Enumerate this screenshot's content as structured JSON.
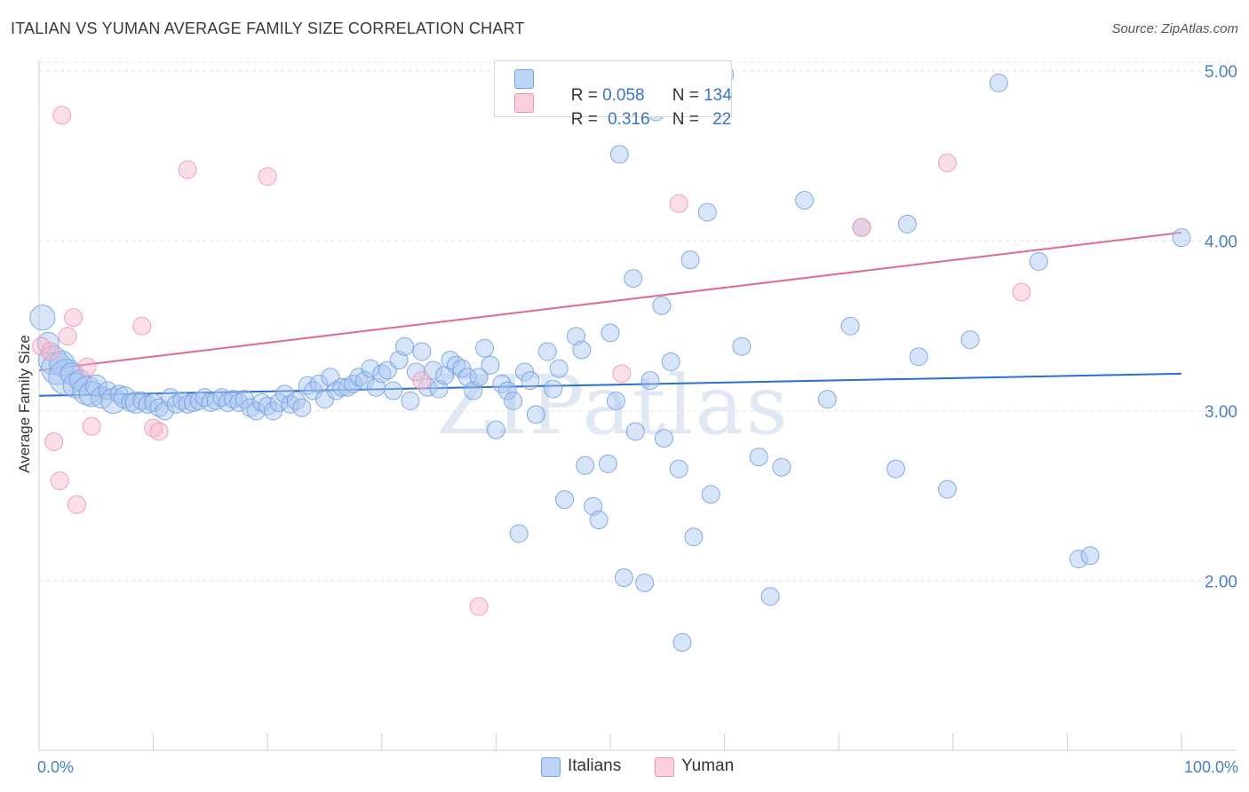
{
  "title": "ITALIAN VS YUMAN AVERAGE FAMILY SIZE CORRELATION CHART",
  "source": "Source: ZipAtlas.com",
  "watermark": "ZIPatlas",
  "legend_top": {
    "rows": [
      {
        "r_label": "R = ",
        "r_value": "0.058",
        "n_label": "N = ",
        "n_value": "134",
        "color": "#a8c6f0"
      },
      {
        "r_label": "R = ",
        "r_value": "0.316",
        "n_label": "N = ",
        "n_value": "22",
        "color": "#f6b8cb"
      }
    ]
  },
  "legend_bottom": [
    {
      "label": "Italians",
      "color": "#a8c6f0"
    },
    {
      "label": "Yuman",
      "color": "#f6b8cb"
    }
  ],
  "chart_data": {
    "type": "scatter",
    "title": "ITALIAN VS YUMAN AVERAGE FAMILY SIZE CORRELATION CHART",
    "xlabel": "",
    "ylabel": "Average Family Size",
    "xlim": [
      0,
      100
    ],
    "ylim": [
      1.0,
      5.3
    ],
    "x_tick_labels": [
      "0.0%",
      "100.0%"
    ],
    "y_ticks": [
      2.0,
      3.0,
      4.0,
      5.0
    ],
    "y_tick_labels": [
      "2.00",
      "3.00",
      "4.00",
      "5.00"
    ],
    "grid": true,
    "legend_position": "top-center",
    "series": [
      {
        "name": "Italians",
        "color": "#6e9fe0",
        "fill": "#a8c6f0",
        "trend": {
          "x": [
            0,
            100
          ],
          "y": [
            3.09,
            3.22
          ]
        },
        "points": [
          [
            0.3,
            3.55,
            14
          ],
          [
            0.8,
            3.4,
            12
          ],
          [
            1.2,
            3.3,
            16
          ],
          [
            1.6,
            3.25,
            18
          ],
          [
            2.0,
            3.28,
            14
          ],
          [
            2.4,
            3.2,
            20
          ],
          [
            2.8,
            3.22,
            12
          ],
          [
            3.2,
            3.15,
            14
          ],
          [
            3.6,
            3.18,
            12
          ],
          [
            4.2,
            3.12,
            16
          ],
          [
            4.6,
            3.1,
            14
          ],
          [
            5.0,
            3.15,
            12
          ],
          [
            5.5,
            3.08,
            12
          ],
          [
            6.0,
            3.12,
            10
          ],
          [
            6.5,
            3.06,
            14
          ],
          [
            7.0,
            3.1,
            10
          ],
          [
            7.5,
            3.08,
            12
          ],
          [
            8.0,
            3.05,
            10
          ],
          [
            8.5,
            3.05,
            12
          ],
          [
            9.0,
            3.06,
            10
          ],
          [
            9.5,
            3.04,
            10
          ],
          [
            10.0,
            3.05,
            10
          ],
          [
            10.5,
            3.02,
            10
          ],
          [
            11.0,
            3.0,
            10
          ],
          [
            11.5,
            3.08,
            10
          ],
          [
            12.0,
            3.04,
            10
          ],
          [
            12.5,
            3.06,
            10
          ],
          [
            13.0,
            3.04,
            10
          ],
          [
            13.5,
            3.05,
            10
          ],
          [
            14.0,
            3.06,
            10
          ],
          [
            14.5,
            3.08,
            10
          ],
          [
            15.0,
            3.05,
            10
          ],
          [
            15.5,
            3.06,
            10
          ],
          [
            16.0,
            3.08,
            10
          ],
          [
            16.5,
            3.05,
            10
          ],
          [
            17.0,
            3.07,
            10
          ],
          [
            17.5,
            3.05,
            10
          ],
          [
            18.0,
            3.07,
            10
          ],
          [
            18.5,
            3.02,
            10
          ],
          [
            19.0,
            3.0,
            10
          ],
          [
            19.5,
            3.05,
            10
          ],
          [
            20.0,
            3.03,
            10
          ],
          [
            20.5,
            3.0,
            10
          ],
          [
            21.0,
            3.05,
            10
          ],
          [
            21.5,
            3.1,
            10
          ],
          [
            22.0,
            3.04,
            10
          ],
          [
            22.5,
            3.06,
            10
          ],
          [
            23.0,
            3.02,
            10
          ],
          [
            23.5,
            3.15,
            10
          ],
          [
            24.0,
            3.12,
            10
          ],
          [
            24.5,
            3.16,
            10
          ],
          [
            25.0,
            3.07,
            10
          ],
          [
            25.5,
            3.2,
            10
          ],
          [
            26.0,
            3.12,
            10
          ],
          [
            26.5,
            3.14,
            10
          ],
          [
            27.0,
            3.14,
            10
          ],
          [
            27.5,
            3.16,
            10
          ],
          [
            28.0,
            3.2,
            10
          ],
          [
            28.5,
            3.18,
            10
          ],
          [
            29.0,
            3.25,
            10
          ],
          [
            29.5,
            3.14,
            10
          ],
          [
            30.0,
            3.22,
            10
          ],
          [
            30.5,
            3.24,
            10
          ],
          [
            31.0,
            3.12,
            10
          ],
          [
            31.5,
            3.3,
            10
          ],
          [
            32.0,
            3.38,
            10
          ],
          [
            32.5,
            3.06,
            10
          ],
          [
            33.0,
            3.23,
            10
          ],
          [
            33.5,
            3.35,
            10
          ],
          [
            34.0,
            3.14,
            10
          ],
          [
            34.5,
            3.24,
            10
          ],
          [
            35.0,
            3.13,
            10
          ],
          [
            35.5,
            3.21,
            10
          ],
          [
            36.0,
            3.3,
            10
          ],
          [
            36.5,
            3.27,
            10
          ],
          [
            37.0,
            3.25,
            10
          ],
          [
            37.5,
            3.2,
            10
          ],
          [
            38.0,
            3.12,
            10
          ],
          [
            38.5,
            3.2,
            10
          ],
          [
            39.0,
            3.37,
            10
          ],
          [
            39.5,
            3.27,
            10
          ],
          [
            40.0,
            2.89,
            10
          ],
          [
            40.5,
            3.16,
            10
          ],
          [
            41.0,
            3.12,
            10
          ],
          [
            41.5,
            3.06,
            10
          ],
          [
            42.0,
            2.28,
            10
          ],
          [
            42.5,
            3.23,
            10
          ],
          [
            43.0,
            3.18,
            10
          ],
          [
            43.5,
            2.98,
            10
          ],
          [
            44.5,
            3.35,
            10
          ],
          [
            45.0,
            3.13,
            10
          ],
          [
            45.5,
            3.25,
            10
          ],
          [
            46.0,
            2.48,
            10
          ],
          [
            47.0,
            3.44,
            10
          ],
          [
            47.5,
            3.36,
            10
          ],
          [
            47.8,
            2.68,
            10
          ],
          [
            48.5,
            2.44,
            10
          ],
          [
            49.0,
            2.36,
            10
          ],
          [
            49.8,
            2.69,
            10
          ],
          [
            50.0,
            3.46,
            10
          ],
          [
            50.5,
            3.06,
            10
          ],
          [
            50.8,
            4.51,
            10
          ],
          [
            51.2,
            2.02,
            10
          ],
          [
            52.0,
            3.78,
            10
          ],
          [
            52.2,
            2.88,
            10
          ],
          [
            53.0,
            1.99,
            10
          ],
          [
            53.5,
            3.18,
            10
          ],
          [
            54.0,
            4.76,
            10
          ],
          [
            54.5,
            3.62,
            10
          ],
          [
            54.7,
            2.84,
            10
          ],
          [
            55.3,
            3.29,
            10
          ],
          [
            56.0,
            2.66,
            10
          ],
          [
            56.3,
            1.64,
            10
          ],
          [
            57.0,
            3.89,
            10
          ],
          [
            57.3,
            2.26,
            10
          ],
          [
            58.5,
            4.17,
            10
          ],
          [
            58.8,
            2.51,
            10
          ],
          [
            60.0,
            4.98,
            10
          ],
          [
            61.5,
            3.38,
            10
          ],
          [
            63.0,
            2.73,
            10
          ],
          [
            64.0,
            1.91,
            10
          ],
          [
            65.0,
            2.67,
            10
          ],
          [
            67.0,
            4.24,
            10
          ],
          [
            69.0,
            3.07,
            10
          ],
          [
            71.0,
            3.5,
            10
          ],
          [
            72.0,
            4.08,
            10
          ],
          [
            75.0,
            2.66,
            10
          ],
          [
            76.0,
            4.1,
            10
          ],
          [
            77.0,
            3.32,
            10
          ],
          [
            79.5,
            2.54,
            10
          ],
          [
            81.5,
            3.42,
            10
          ],
          [
            84.0,
            4.93,
            10
          ],
          [
            87.5,
            3.88,
            10
          ],
          [
            91.0,
            2.13,
            10
          ],
          [
            92.0,
            2.15,
            10
          ],
          [
            100.0,
            4.02,
            10
          ]
        ]
      },
      {
        "name": "Yuman",
        "color": "#f090b0",
        "fill": "#f6b8cb",
        "trend": {
          "x": [
            0,
            100
          ],
          "y": [
            3.24,
            4.05
          ]
        },
        "points": [
          [
            0.2,
            3.38,
            10
          ],
          [
            1.0,
            3.35,
            10
          ],
          [
            1.3,
            2.82,
            10
          ],
          [
            1.8,
            2.59,
            10
          ],
          [
            2.0,
            4.74,
            10
          ],
          [
            2.5,
            3.44,
            10
          ],
          [
            3.0,
            3.55,
            10
          ],
          [
            3.3,
            2.45,
            10
          ],
          [
            4.2,
            3.26,
            10
          ],
          [
            4.6,
            2.91,
            10
          ],
          [
            9.0,
            3.5,
            10
          ],
          [
            10.0,
            2.9,
            10
          ],
          [
            10.5,
            2.88,
            10
          ],
          [
            13.0,
            4.42,
            10
          ],
          [
            20.0,
            4.38,
            10
          ],
          [
            33.5,
            3.18,
            10
          ],
          [
            38.5,
            1.85,
            10
          ],
          [
            51.0,
            3.22,
            10
          ],
          [
            56.0,
            4.22,
            10
          ],
          [
            72.0,
            4.08,
            10
          ],
          [
            79.5,
            4.46,
            10
          ],
          [
            86.0,
            3.7,
            10
          ]
        ]
      }
    ]
  }
}
